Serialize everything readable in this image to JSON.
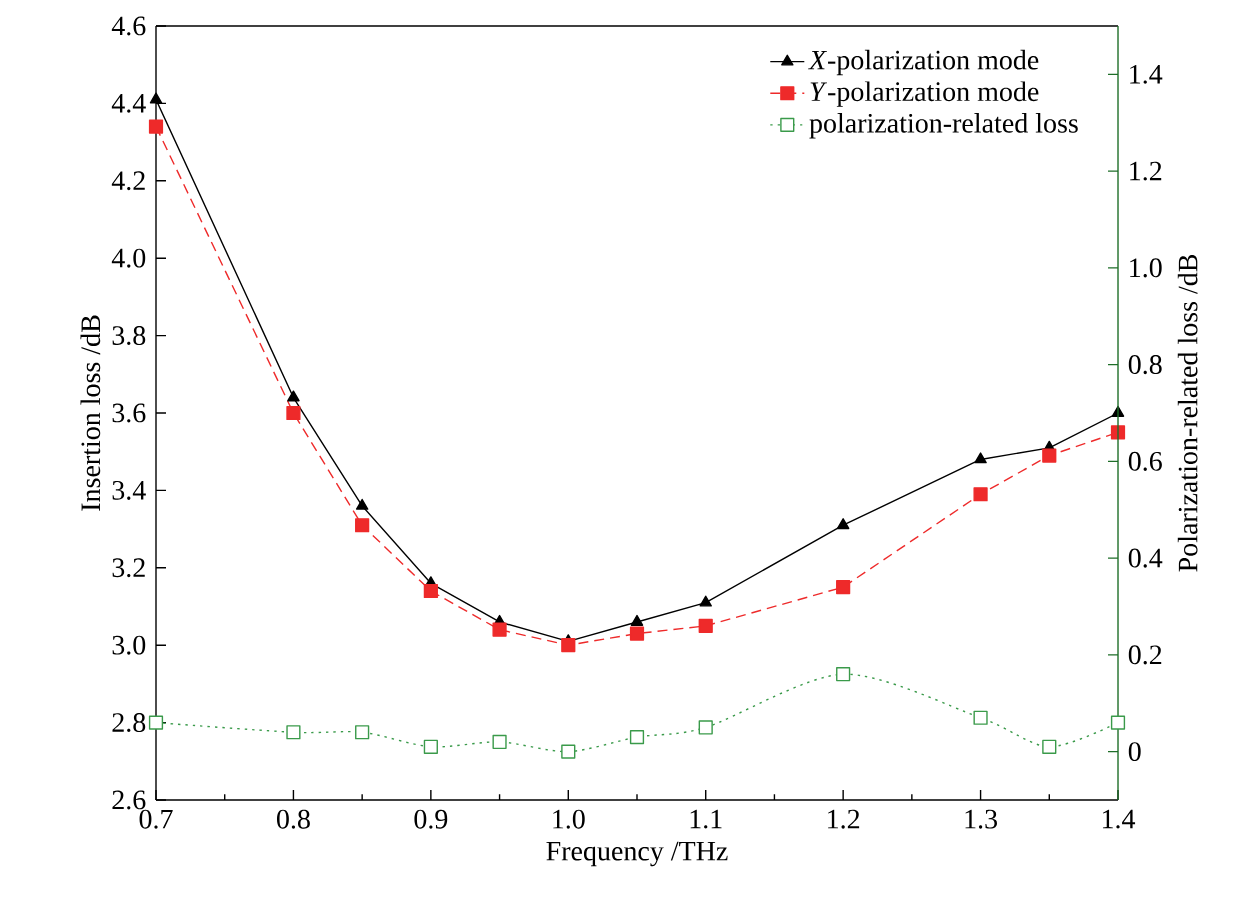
{
  "chart_data": {
    "type": "line",
    "xlabel": "Frequency /THz",
    "ylabel": "Insertion loss /dB",
    "y2label": "Polarization-related loss /dB",
    "x": [
      0.7,
      0.8,
      0.85,
      0.9,
      0.95,
      1.0,
      1.05,
      1.1,
      1.2,
      1.3,
      1.35,
      1.4
    ],
    "series": [
      {
        "name": "*X*-polarization mode",
        "color": "#000000",
        "marker": "triangle",
        "line_style": "solid",
        "values": [
          4.41,
          3.64,
          3.36,
          3.16,
          3.06,
          3.01,
          3.06,
          3.11,
          3.31,
          3.48,
          3.51,
          3.6
        ]
      },
      {
        "name": "*Y*-polarization mode",
        "color": "#ee2a2a",
        "marker": "square",
        "line_style": "dashed",
        "values": [
          4.34,
          3.6,
          3.31,
          3.14,
          3.04,
          3.0,
          3.03,
          3.05,
          3.15,
          3.39,
          3.49,
          3.55
        ]
      },
      {
        "name": "polarization-related loss",
        "color": "#3a9a4a",
        "marker": "square",
        "line_style": "dotted",
        "axis": "y2",
        "values": [
          0.06,
          0.04,
          0.04,
          0.01,
          0.02,
          0.0,
          0.03,
          0.05,
          0.16,
          0.07,
          0.01,
          0.06
        ]
      }
    ],
    "xlim": [
      0.7,
      1.4
    ],
    "xticks": [
      0.7,
      0.8,
      0.9,
      {
        "value": 1.0,
        "label": "1.0"
      },
      1.1,
      1.2,
      1.3,
      1.4
    ],
    "ylim": [
      2.6,
      4.6
    ],
    "yticks": [
      2.6,
      2.8,
      {
        "value": 3.0,
        "label": "3.0"
      },
      3.2,
      3.4,
      3.6,
      3.8,
      {
        "value": 4.0,
        "label": "4.0"
      },
      4.2,
      4.4,
      4.6
    ],
    "y2lim": [
      -0.1,
      1.5
    ],
    "y2ticks": [
      0,
      0.2,
      0.4,
      0.6,
      0.8,
      {
        "value": 1.0,
        "label": "1.0"
      },
      1.2,
      1.4
    ],
    "grid": false,
    "legend": "top right"
  }
}
